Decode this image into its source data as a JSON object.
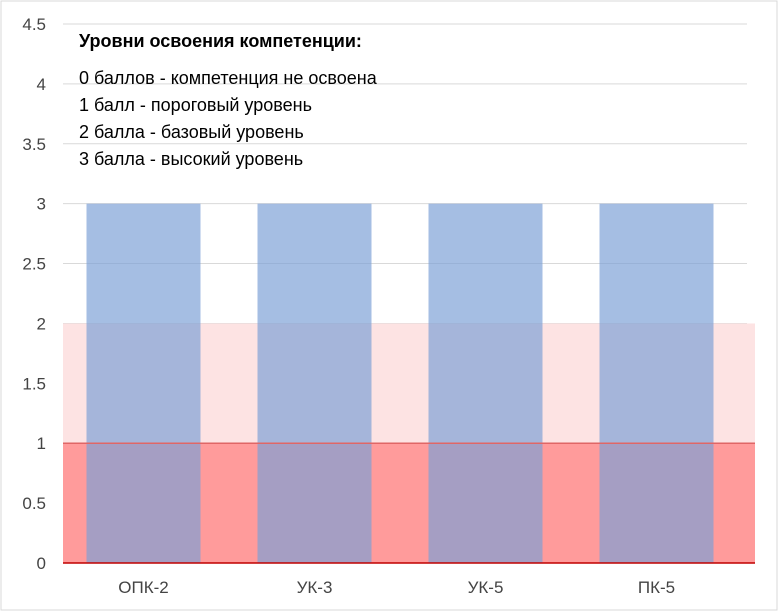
{
  "chart_data": {
    "type": "bar",
    "categories": [
      "ОПК-2",
      "УК-3",
      "УК-5",
      "ПК-5"
    ],
    "values": [
      3,
      3,
      3,
      3
    ],
    "ylim": [
      0,
      4.5
    ],
    "y_ticks": [
      "0",
      "0.5",
      "1",
      "1.5",
      "2",
      "2.5",
      "3",
      "3.5",
      "4",
      "4.5"
    ],
    "grid": true,
    "bands": [
      {
        "from": 0,
        "to": 1,
        "color": "#ff9b9b"
      },
      {
        "from": 1,
        "to": 2,
        "color": "#fde3e3"
      }
    ],
    "colors": {
      "bar": "#7b9fd5",
      "gridline": "#d9d9d9",
      "baseline": "#c00000"
    },
    "legend": {
      "title": "Уровни освоения компетенции:",
      "placement": "top-left",
      "lines": [
        "0 баллов - компетенция не освоена",
        "1 балл - пороговый уровень",
        "2 балла - базовый уровень",
        "3 балла - высокий уровень"
      ]
    }
  }
}
